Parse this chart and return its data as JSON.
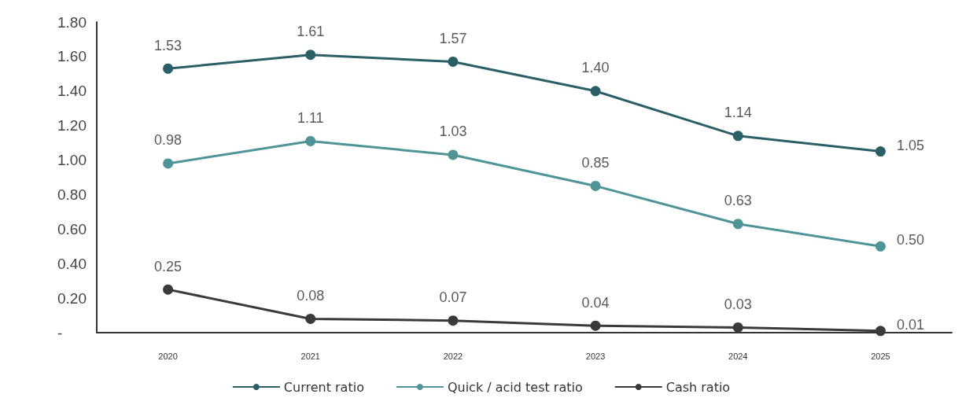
{
  "chart_data": {
    "type": "line",
    "categories": [
      "2020",
      "2021",
      "2022",
      "2023",
      "2024",
      "2025"
    ],
    "series": [
      {
        "name": "Current ratio",
        "color": "#2b5f66",
        "values": [
          1.53,
          1.61,
          1.57,
          1.4,
          1.14,
          1.05
        ],
        "value_labels": [
          "1.53",
          "1.61",
          "1.57",
          "1.40",
          "1.14",
          "1.05"
        ]
      },
      {
        "name": "Quick / acid test ratio",
        "color": "#4f9497",
        "values": [
          0.98,
          1.11,
          1.03,
          0.85,
          0.63,
          0.5
        ],
        "value_labels": [
          "0.98",
          "1.11",
          "1.03",
          "0.85",
          "0.63",
          "0.50"
        ]
      },
      {
        "name": "Cash ratio",
        "color": "#3a3a3a",
        "values": [
          0.25,
          0.08,
          0.07,
          0.04,
          0.03,
          0.01
        ],
        "value_labels": [
          "0.25",
          "0.08",
          "0.07",
          "0.04",
          "0.03",
          "0.01"
        ]
      }
    ],
    "ylim": [
      0,
      1.8
    ],
    "yticks": [
      {
        "value": 0,
        "label": "-"
      },
      {
        "value": 0.2,
        "label": "0.20"
      },
      {
        "value": 0.4,
        "label": "0.40"
      },
      {
        "value": 0.6,
        "label": "0.60"
      },
      {
        "value": 0.8,
        "label": "0.80"
      },
      {
        "value": 1,
        "label": "1.00"
      },
      {
        "value": 1.2,
        "label": "1.20"
      },
      {
        "value": 1.4,
        "label": "1.40"
      },
      {
        "value": 1.6,
        "label": "1.60"
      },
      {
        "value": 1.8,
        "label": "1.80"
      }
    ],
    "grid": false,
    "legend": "bottom",
    "marker": "circle",
    "line_style": "solid"
  }
}
